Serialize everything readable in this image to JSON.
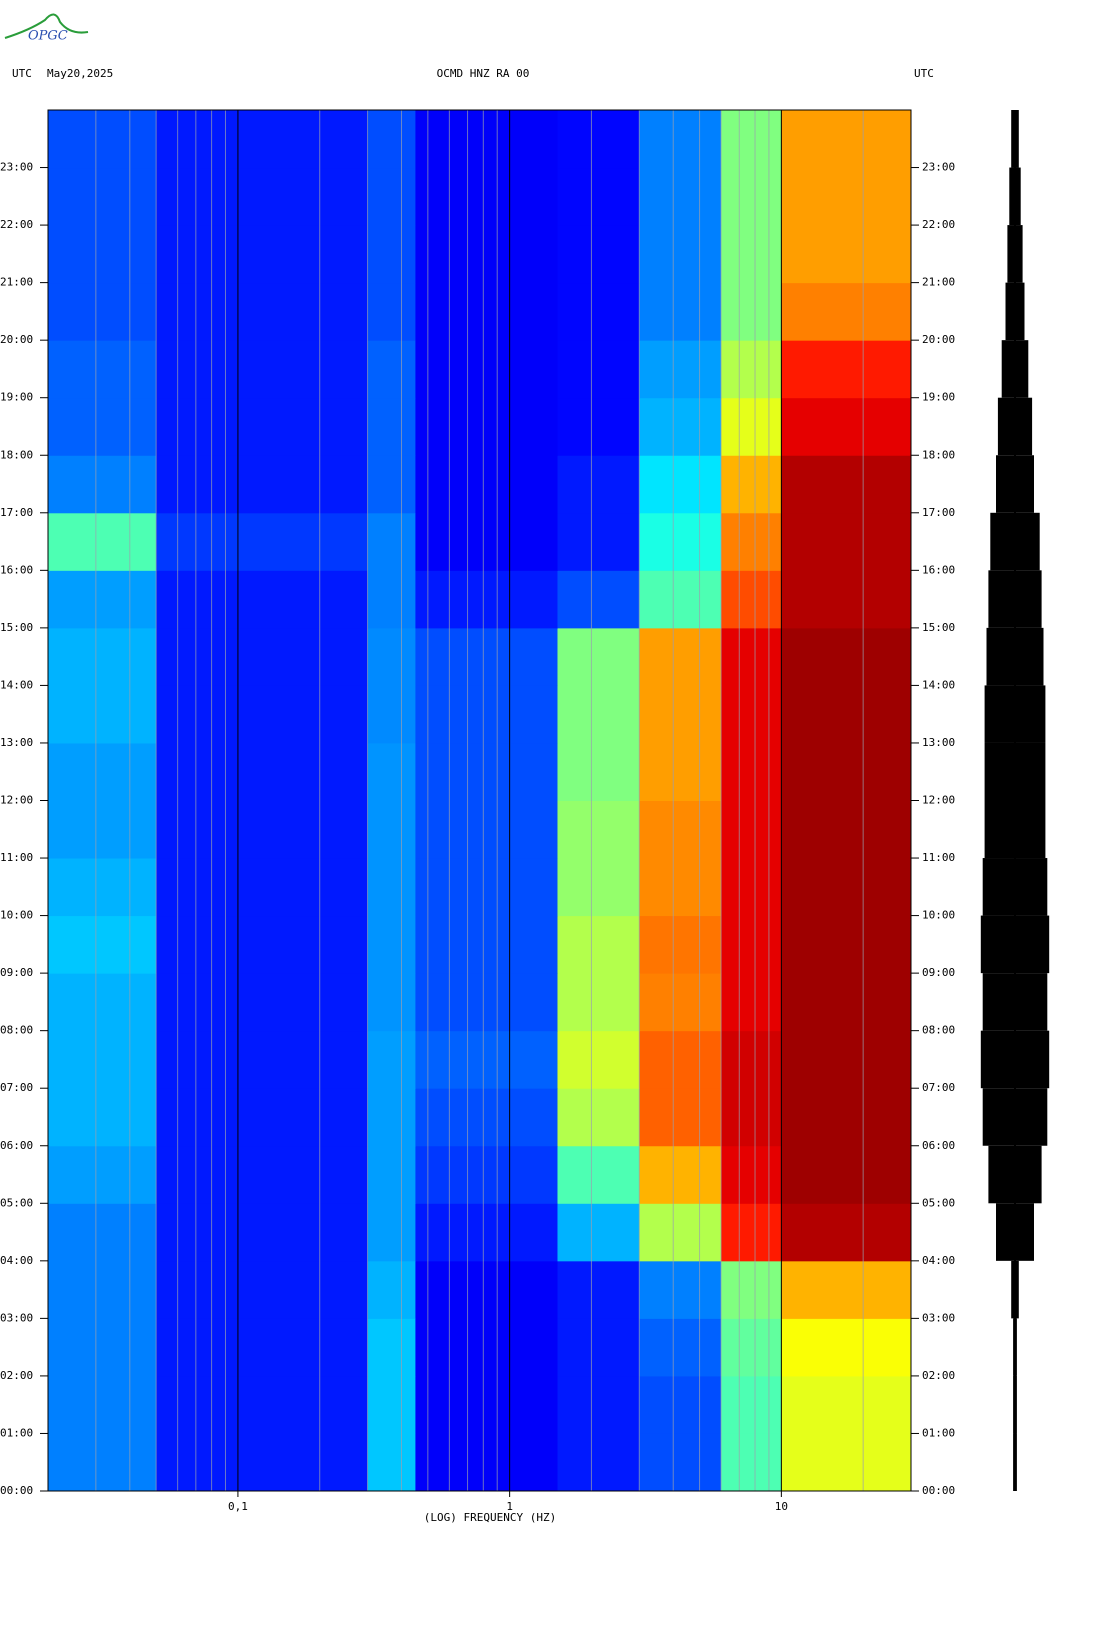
{
  "logo": "OPGC",
  "chart_data": {
    "type": "spectrogram",
    "title": "OCMD HNZ RA 00",
    "date": "May20,2025",
    "left_label": "UTC",
    "right_label": "UTC",
    "xlabel": "(LOG) FREQUENCY (HZ)",
    "xscale": "log",
    "colormap": "jet",
    "xlim": [
      0.02,
      30
    ],
    "xticks": [
      {
        "value": 0.1,
        "label": "0,1"
      },
      {
        "value": 1,
        "label": "1"
      },
      {
        "value": 10,
        "label": "10"
      }
    ],
    "x_minor_ticks": [
      0.03,
      0.04,
      0.05,
      0.06,
      0.07,
      0.08,
      0.09,
      0.2,
      0.3,
      0.4,
      0.5,
      0.6,
      0.7,
      0.8,
      0.9,
      2,
      3,
      4,
      5,
      6,
      7,
      8,
      9,
      20,
      30
    ],
    "ylim": [
      0,
      24
    ],
    "yticks": [
      {
        "value": 0,
        "label": "00:00"
      },
      {
        "value": 1,
        "label": "01:00"
      },
      {
        "value": 2,
        "label": "02:00"
      },
      {
        "value": 3,
        "label": "03:00"
      },
      {
        "value": 4,
        "label": "04:00"
      },
      {
        "value": 5,
        "label": "05:00"
      },
      {
        "value": 6,
        "label": "06:00"
      },
      {
        "value": 7,
        "label": "07:00"
      },
      {
        "value": 8,
        "label": "08:00"
      },
      {
        "value": 9,
        "label": "09:00"
      },
      {
        "value": 10,
        "label": "10:00"
      },
      {
        "value": 11,
        "label": "11:00"
      },
      {
        "value": 12,
        "label": "12:00"
      },
      {
        "value": 13,
        "label": "13:00"
      },
      {
        "value": 14,
        "label": "14:00"
      },
      {
        "value": 15,
        "label": "15:00"
      },
      {
        "value": 16,
        "label": "16:00"
      },
      {
        "value": 17,
        "label": "17:00"
      },
      {
        "value": 18,
        "label": "18:00"
      },
      {
        "value": 19,
        "label": "19:00"
      },
      {
        "value": 20,
        "label": "20:00"
      },
      {
        "value": 21,
        "label": "21:00"
      },
      {
        "value": 22,
        "label": "22:00"
      },
      {
        "value": 23,
        "label": "23:00"
      }
    ],
    "x_bins": [
      0.02,
      0.05,
      0.3,
      0.45,
      1.5,
      3,
      6,
      10,
      30
    ],
    "z": [
      [
        0.25,
        0.15,
        0.32,
        0.12,
        0.15,
        0.2,
        0.45,
        0.6
      ],
      [
        0.25,
        0.15,
        0.32,
        0.12,
        0.15,
        0.2,
        0.45,
        0.6
      ],
      [
        0.25,
        0.15,
        0.32,
        0.12,
        0.15,
        0.22,
        0.47,
        0.62
      ],
      [
        0.25,
        0.15,
        0.3,
        0.12,
        0.15,
        0.25,
        0.5,
        0.7
      ],
      [
        0.25,
        0.15,
        0.28,
        0.15,
        0.3,
        0.55,
        0.85,
        0.95
      ],
      [
        0.28,
        0.15,
        0.28,
        0.18,
        0.45,
        0.7,
        0.9,
        0.97
      ],
      [
        0.3,
        0.15,
        0.28,
        0.2,
        0.55,
        0.78,
        0.92,
        0.97
      ],
      [
        0.3,
        0.15,
        0.28,
        0.22,
        0.58,
        0.78,
        0.92,
        0.97
      ],
      [
        0.3,
        0.15,
        0.27,
        0.2,
        0.55,
        0.75,
        0.9,
        0.97
      ],
      [
        0.32,
        0.15,
        0.27,
        0.2,
        0.55,
        0.76,
        0.9,
        0.97
      ],
      [
        0.3,
        0.15,
        0.27,
        0.2,
        0.52,
        0.74,
        0.9,
        0.97
      ],
      [
        0.28,
        0.15,
        0.27,
        0.2,
        0.52,
        0.74,
        0.9,
        0.97
      ],
      [
        0.28,
        0.15,
        0.27,
        0.2,
        0.5,
        0.72,
        0.9,
        0.97
      ],
      [
        0.3,
        0.15,
        0.26,
        0.2,
        0.5,
        0.72,
        0.9,
        0.97
      ],
      [
        0.3,
        0.15,
        0.26,
        0.2,
        0.5,
        0.72,
        0.9,
        0.97
      ],
      [
        0.28,
        0.15,
        0.25,
        0.15,
        0.2,
        0.45,
        0.8,
        0.95
      ],
      [
        0.45,
        0.18,
        0.25,
        0.12,
        0.15,
        0.4,
        0.75,
        0.95
      ],
      [
        0.25,
        0.15,
        0.22,
        0.12,
        0.15,
        0.35,
        0.7,
        0.95
      ],
      [
        0.22,
        0.15,
        0.22,
        0.12,
        0.13,
        0.3,
        0.6,
        0.9
      ],
      [
        0.22,
        0.15,
        0.22,
        0.12,
        0.13,
        0.28,
        0.55,
        0.85
      ],
      [
        0.2,
        0.15,
        0.2,
        0.12,
        0.13,
        0.25,
        0.5,
        0.75
      ],
      [
        0.2,
        0.15,
        0.2,
        0.12,
        0.13,
        0.25,
        0.5,
        0.72
      ],
      [
        0.2,
        0.15,
        0.2,
        0.12,
        0.13,
        0.25,
        0.5,
        0.72
      ],
      [
        0.2,
        0.15,
        0.2,
        0.12,
        0.13,
        0.25,
        0.5,
        0.72
      ]
    ],
    "trace_amplitude": [
      0.05,
      0.05,
      0.05,
      0.1,
      0.5,
      0.7,
      0.85,
      0.9,
      0.85,
      0.9,
      0.85,
      0.8,
      0.8,
      0.8,
      0.75,
      0.7,
      0.65,
      0.5,
      0.45,
      0.35,
      0.25,
      0.2,
      0.15,
      0.1
    ]
  }
}
